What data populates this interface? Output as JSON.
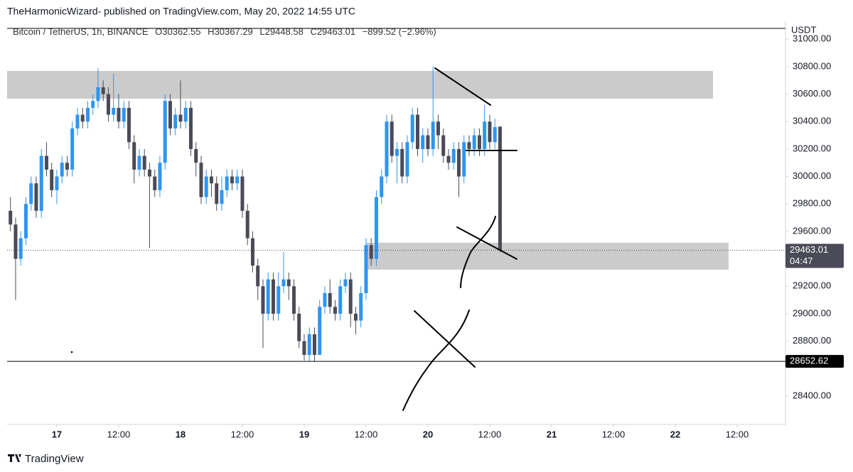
{
  "chart_data": {
    "type": "candlestick",
    "title": "TheHarmonicWizard- published on TradingView.com, May 20, 2022 14:55 UTC",
    "symbol": "Bitcoin / TetherUS, 1h, BINANCE",
    "ohlc_text": [
      "O30362.55",
      "H30367.29",
      "L29448.58",
      "C29463.01",
      "−899.52 (−2.96%)"
    ],
    "y_unit": "USDT",
    "footer": "TradingView",
    "up_color": "#2f95f0",
    "down_color": "#4a4b56",
    "grid": false,
    "xlim": [
      16.598,
      22.891
    ],
    "ylim": [
      28193,
      31079
    ],
    "xticks": [
      {
        "value": 17,
        "label": "17"
      },
      {
        "value": 17.5,
        "label": "12:00"
      },
      {
        "value": 18,
        "label": "18"
      },
      {
        "value": 18.5,
        "label": "12:00"
      },
      {
        "value": 19,
        "label": "19"
      },
      {
        "value": 19.5,
        "label": "12:00"
      },
      {
        "value": 20,
        "label": "20"
      },
      {
        "value": 20.5,
        "label": "12:00"
      },
      {
        "value": 21,
        "label": "21"
      },
      {
        "value": 21.5,
        "label": "12:00"
      },
      {
        "value": 22,
        "label": "22"
      },
      {
        "value": 22.5,
        "label": "12:00"
      }
    ],
    "yticks": [
      {
        "value": 28400,
        "label": "28400.00"
      },
      {
        "value": 28800,
        "label": "28800.00"
      },
      {
        "value": 29000,
        "label": "29000.00"
      },
      {
        "value": 29200,
        "label": "29200.00"
      },
      {
        "value": 29600,
        "label": "29600.00"
      },
      {
        "value": 29800,
        "label": "29800.00"
      },
      {
        "value": 30000,
        "label": "30000.00"
      },
      {
        "value": 30200,
        "label": "30200.00"
      },
      {
        "value": 30400,
        "label": "30400.00"
      },
      {
        "value": 30600,
        "label": "30600.00"
      },
      {
        "value": 30800,
        "label": "30800.00"
      },
      {
        "value": 31000,
        "label": "31000.00"
      }
    ],
    "x": [
      16.625,
      16.6667,
      16.7083,
      16.75,
      16.7917,
      16.8333,
      16.875,
      16.9167,
      16.9583,
      17,
      17.0417,
      17.0833,
      17.125,
      17.1667,
      17.2083,
      17.25,
      17.2917,
      17.3333,
      17.375,
      17.4167,
      17.4583,
      17.5,
      17.5417,
      17.5833,
      17.625,
      17.6667,
      17.7083,
      17.75,
      17.7917,
      17.8333,
      17.875,
      17.9167,
      17.9583,
      18,
      18.0417,
      18.0833,
      18.125,
      18.1667,
      18.2083,
      18.25,
      18.2917,
      18.3333,
      18.375,
      18.4167,
      18.4583,
      18.5,
      18.5417,
      18.5833,
      18.625,
      18.6667,
      18.7083,
      18.75,
      18.7917,
      18.8333,
      18.875,
      18.9167,
      18.9583,
      19,
      19.0417,
      19.0833,
      19.125,
      19.1667,
      19.2083,
      19.25,
      19.2917,
      19.3333,
      19.375,
      19.4167,
      19.4583,
      19.5,
      19.5417,
      19.5833,
      19.625,
      19.6667,
      19.7083,
      19.75,
      19.7917,
      19.8333,
      19.875,
      19.9167,
      19.9583,
      20,
      20.0417,
      20.0833,
      20.125,
      20.1667,
      20.2083,
      20.25,
      20.2917,
      20.3333,
      20.375,
      20.4167,
      20.4583,
      20.5,
      20.5417,
      20.5833
    ],
    "open": [
      29750,
      29650,
      29400,
      29550,
      29800,
      29950,
      29750,
      30150,
      30050,
      29900,
      30000,
      30100,
      30050,
      30350,
      30450,
      30400,
      30500,
      30550,
      30650,
      30600,
      30450,
      30500,
      30400,
      30500,
      30250,
      30050,
      30150,
      30050,
      30000,
      29900,
      30100,
      30550,
      30350,
      30450,
      30400,
      30500,
      30200,
      30100,
      29850,
      30000,
      29950,
      29800,
      29900,
      30000,
      29950,
      30000,
      29750,
      29550,
      29350,
      29200,
      29000,
      29250,
      29000,
      29200,
      29250,
      29200,
      29000,
      28800,
      28700,
      28850,
      28700,
      29050,
      29150,
      29050,
      29000,
      29200,
      29250,
      29000,
      28950,
      29150,
      29500,
      29400,
      29850,
      30000,
      30400,
      30150,
      30200,
      30000,
      30250,
      30450,
      30200,
      30300,
      30200,
      30400,
      30300,
      30150,
      30100,
      30200,
      30000,
      30250,
      30200,
      30300,
      30200,
      30400,
      30250,
      30362.55
    ],
    "high": [
      29850,
      29700,
      29600,
      29850,
      30000,
      30000,
      30200,
      30250,
      30100,
      30050,
      30150,
      30150,
      30400,
      30500,
      30500,
      30550,
      30600,
      30790,
      30700,
      30650,
      30750,
      30600,
      30550,
      30550,
      30300,
      30200,
      30200,
      30100,
      30050,
      30150,
      30600,
      30600,
      30500,
      30700,
      30550,
      30550,
      30250,
      30150,
      30050,
      30050,
      30000,
      30000,
      30050,
      30050,
      30050,
      30050,
      29800,
      29600,
      29400,
      29250,
      29300,
      29300,
      29300,
      29450,
      29300,
      29250,
      29050,
      28850,
      28900,
      28900,
      29100,
      29200,
      29250,
      29100,
      29250,
      29300,
      29300,
      29050,
      29200,
      29550,
      29550,
      29900,
      30050,
      30450,
      30450,
      30250,
      30250,
      30300,
      30500,
      30500,
      30350,
      30350,
      30800,
      30450,
      30350,
      30200,
      30250,
      30250,
      30300,
      30300,
      30350,
      30350,
      30520,
      30450,
      30420,
      30367.29
    ],
    "low": [
      29600,
      29100,
      29350,
      29500,
      29750,
      29700,
      29700,
      30000,
      29850,
      29800,
      29950,
      30000,
      30000,
      30300,
      30350,
      30350,
      30450,
      30500,
      30550,
      30400,
      30400,
      30350,
      30350,
      30200,
      29950,
      30000,
      30000,
      29480,
      29850,
      29850,
      30050,
      30300,
      30300,
      30350,
      30350,
      30150,
      30000,
      29800,
      29800,
      29850,
      29750,
      29750,
      29850,
      29900,
      29900,
      29700,
      29500,
      29300,
      29100,
      28750,
      28950,
      28950,
      28950,
      29150,
      29100,
      28950,
      28750,
      28660,
      28650,
      28650,
      28700,
      29000,
      29000,
      28950,
      28950,
      29150,
      28900,
      28850,
      28900,
      29100,
      29350,
      29350,
      29800,
      29950,
      30100,
      29950,
      29950,
      29950,
      30200,
      30150,
      30100,
      30150,
      30150,
      30200,
      30100,
      30050,
      30050,
      29850,
      29950,
      30150,
      30150,
      30150,
      30150,
      30200,
      30200,
      29448.58
    ],
    "close": [
      29650,
      29400,
      29550,
      29800,
      29950,
      29750,
      30150,
      30050,
      29900,
      30000,
      30100,
      30050,
      30350,
      30450,
      30400,
      30500,
      30550,
      30650,
      30600,
      30450,
      30500,
      30400,
      30500,
      30250,
      30050,
      30150,
      30050,
      30000,
      29900,
      30100,
      30550,
      30350,
      30450,
      30400,
      30500,
      30200,
      30100,
      29850,
      30000,
      29950,
      29800,
      29900,
      30000,
      29950,
      30000,
      29750,
      29550,
      29350,
      29200,
      29000,
      29250,
      29000,
      29200,
      29250,
      29200,
      29000,
      28800,
      28700,
      28850,
      28700,
      29050,
      29150,
      29050,
      29000,
      29200,
      29250,
      29000,
      28950,
      29150,
      29500,
      29400,
      29850,
      30000,
      30400,
      30150,
      30200,
      30000,
      30250,
      30450,
      30200,
      30300,
      30200,
      30400,
      30300,
      30150,
      30100,
      30200,
      30000,
      30250,
      30200,
      30300,
      30200,
      30400,
      30250,
      30360,
      29463.01
    ],
    "zones": [
      {
        "xlim": [
          16.598,
          22.305
        ],
        "ylim": [
          30567,
          30769
        ]
      },
      {
        "xlim": [
          19.5,
          22.431
        ],
        "ylim": [
          29321,
          29517
        ]
      }
    ],
    "axis_labels": [
      {
        "value": 29463.01,
        "label": "29463.01",
        "sub": "04:47"
      },
      {
        "value": 28652.62,
        "label": "28652.62"
      }
    ]
  }
}
